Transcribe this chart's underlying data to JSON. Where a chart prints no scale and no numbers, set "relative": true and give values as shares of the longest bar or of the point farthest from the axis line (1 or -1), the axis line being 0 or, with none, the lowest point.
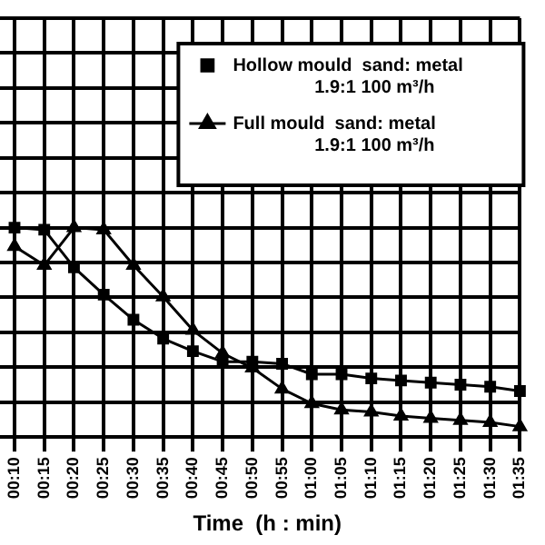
{
  "chart_data": {
    "type": "line",
    "xlabel": "Time  (h : min)",
    "relative": true,
    "grid": true,
    "legend": "top right",
    "line_style": "solid",
    "categories": [
      "00:10",
      "00:15",
      "00:20",
      "00:25",
      "00:30",
      "00:35",
      "00:40",
      "00:45",
      "00:50",
      "00:55",
      "01:00",
      "01:05",
      "01:10",
      "01:15",
      "01:20",
      "01:25",
      "01:30",
      "01:35"
    ],
    "series": [
      {
        "name": "Hollow mould  sand: metal\n1.9:1 100 m³/h",
        "color": "#000000",
        "marker": "square",
        "values": [
          1.0,
          0.99,
          0.81,
          0.68,
          0.56,
          0.47,
          0.41,
          0.36,
          0.36,
          0.35,
          0.3,
          0.3,
          0.28,
          0.27,
          0.26,
          0.25,
          0.24,
          0.22
        ]
      },
      {
        "name": "Full mould  sand: metal\n1.9:1 100 m³/h",
        "color": "#000000",
        "marker": "triangle",
        "values": [
          0.91,
          0.82,
          1.0,
          0.99,
          0.82,
          0.67,
          0.51,
          0.4,
          0.33,
          0.23,
          0.16,
          0.13,
          0.12,
          0.1,
          0.09,
          0.08,
          0.07,
          0.05
        ]
      }
    ]
  }
}
